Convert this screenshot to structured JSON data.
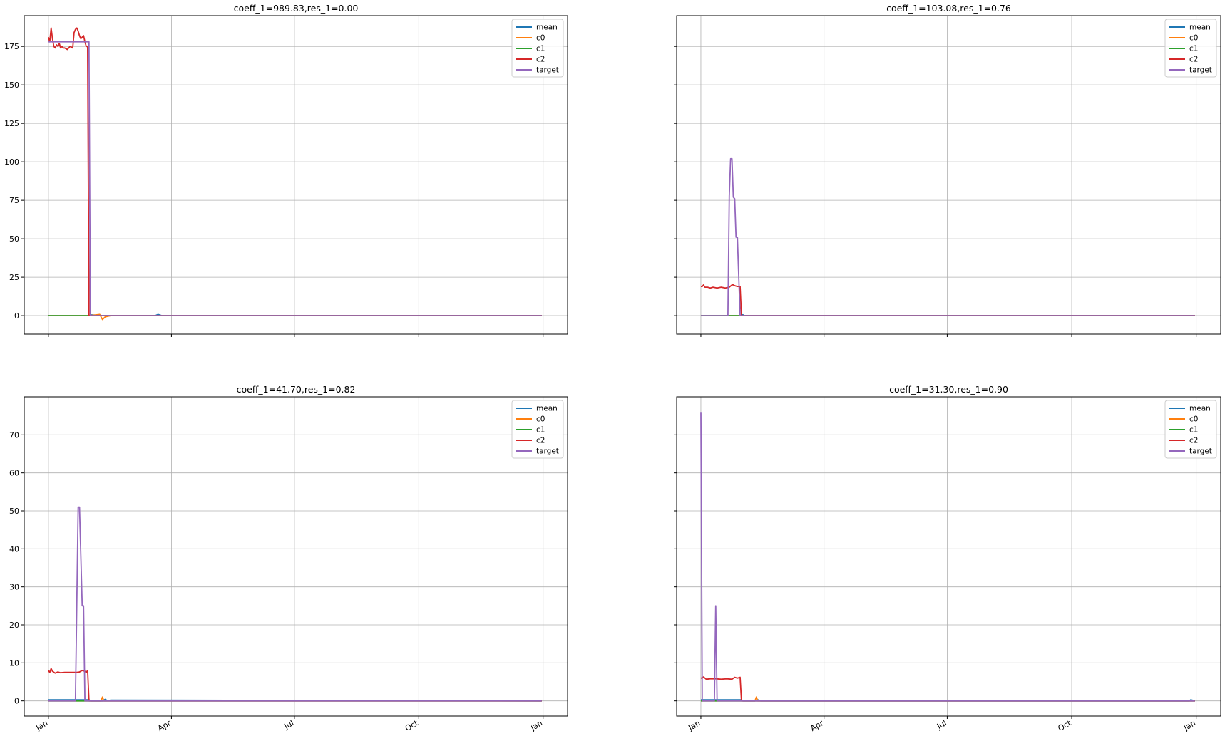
{
  "chart_data": [
    {
      "type": "line",
      "title": "coeff_1=989.83,res_1=0.00",
      "xlabel": "",
      "ylabel": "",
      "xlim": [
        "2020-01-01",
        "2021-01-01"
      ],
      "ylim": [
        -12,
        195
      ],
      "yticks": [
        0,
        25,
        50,
        75,
        100,
        125,
        150,
        175
      ],
      "xticks": [
        {
          "date": "2020-01-01",
          "label": "Jan"
        },
        {
          "date": "2020-04-01",
          "label": "Apr"
        },
        {
          "date": "2020-07-01",
          "label": "Jul"
        },
        {
          "date": "2020-10-01",
          "label": "Oct"
        },
        {
          "date": "2021-01-01",
          "label": "Jan"
        }
      ],
      "show_xticklabels": false,
      "grid": true,
      "legend": "top-right",
      "series": [
        {
          "name": "mean",
          "color": "#1f77b4",
          "x": [
            "2020-01-01",
            "2020-01-31",
            "2020-02-02",
            "2020-02-10",
            "2020-03-20",
            "2020-03-22",
            "2020-03-25",
            "2020-12-31"
          ],
          "y": [
            0,
            0,
            0.5,
            0,
            0,
            0.8,
            0,
            0
          ]
        },
        {
          "name": "c0",
          "color": "#ff7f0e",
          "x": [
            "2020-01-01",
            "2020-01-31",
            "2020-02-08",
            "2020-02-10",
            "2020-02-12",
            "2020-02-16",
            "2020-12-31"
          ],
          "y": [
            0,
            0,
            0.8,
            -2.5,
            -0.8,
            0,
            0
          ]
        },
        {
          "name": "c1",
          "color": "#2ca02c",
          "x": [
            "2020-01-01",
            "2020-02-01",
            "2020-12-31"
          ],
          "y": [
            0,
            0,
            0
          ]
        },
        {
          "name": "c2",
          "color": "#d62728",
          "x": [
            "2020-01-01",
            "2020-01-02",
            "2020-01-03",
            "2020-01-04",
            "2020-01-05",
            "2020-01-06",
            "2020-01-07",
            "2020-01-08",
            "2020-01-09",
            "2020-01-10",
            "2020-01-11",
            "2020-01-12",
            "2020-01-13",
            "2020-01-15",
            "2020-01-17",
            "2020-01-19",
            "2020-01-20",
            "2020-01-21",
            "2020-01-22",
            "2020-01-23",
            "2020-01-24",
            "2020-01-25",
            "2020-01-26",
            "2020-01-27",
            "2020-01-28",
            "2020-01-29",
            "2020-01-30",
            "2020-01-31",
            "2020-02-01",
            "2020-12-31"
          ],
          "y": [
            181,
            178,
            187,
            180,
            175,
            174,
            176,
            175,
            177,
            174,
            175,
            174,
            174,
            173,
            175,
            174,
            184,
            186,
            187,
            185,
            182,
            180,
            181,
            182,
            178,
            175,
            175,
            0,
            0,
            0
          ]
        },
        {
          "name": "target",
          "color": "#9467bd",
          "x": [
            "2020-01-01",
            "2020-01-30",
            "2020-01-31",
            "2020-02-01",
            "2020-12-31"
          ],
          "y": [
            178,
            178,
            178,
            0,
            0
          ]
        }
      ]
    },
    {
      "type": "line",
      "title": "coeff_1=103.08,res_1=0.76",
      "xlabel": "",
      "ylabel": "",
      "xlim": [
        "2020-01-01",
        "2021-01-01"
      ],
      "ylim": [
        -12,
        195
      ],
      "yticks": [
        0,
        25,
        50,
        75,
        100,
        125,
        150,
        175
      ],
      "xticks": [
        {
          "date": "2020-01-01",
          "label": "Jan"
        },
        {
          "date": "2020-04-01",
          "label": "Apr"
        },
        {
          "date": "2020-07-01",
          "label": "Jul"
        },
        {
          "date": "2020-10-01",
          "label": "Oct"
        },
        {
          "date": "2021-01-01",
          "label": "Jan"
        }
      ],
      "show_xticklabels": false,
      "show_yticklabels": false,
      "grid": true,
      "legend": "top-right",
      "series": [
        {
          "name": "mean",
          "color": "#1f77b4",
          "x": [
            "2020-01-01",
            "2020-01-31",
            "2020-02-01",
            "2020-02-02",
            "2020-12-31"
          ],
          "y": [
            0,
            0,
            0.6,
            0,
            0
          ]
        },
        {
          "name": "c0",
          "color": "#ff7f0e",
          "x": [
            "2020-01-01",
            "2020-02-01",
            "2020-12-31"
          ],
          "y": [
            0,
            0,
            0
          ]
        },
        {
          "name": "c1",
          "color": "#2ca02c",
          "x": [
            "2020-01-01",
            "2020-02-01",
            "2020-12-31"
          ],
          "y": [
            0,
            0,
            0
          ]
        },
        {
          "name": "c2",
          "color": "#d62728",
          "x": [
            "2020-01-01",
            "2020-01-02",
            "2020-01-03",
            "2020-01-04",
            "2020-01-06",
            "2020-01-08",
            "2020-01-10",
            "2020-01-13",
            "2020-01-16",
            "2020-01-19",
            "2020-01-22",
            "2020-01-24",
            "2020-01-25",
            "2020-01-26",
            "2020-01-28",
            "2020-01-30",
            "2020-01-31",
            "2020-02-01",
            "2020-12-31"
          ],
          "y": [
            19,
            19,
            20,
            18.5,
            18.5,
            18,
            18.5,
            18,
            18.5,
            18,
            18.5,
            20,
            20,
            19.5,
            19,
            19,
            0,
            0,
            0
          ]
        },
        {
          "name": "target",
          "color": "#9467bd",
          "x": [
            "2020-01-01",
            "2020-01-21",
            "2020-01-22",
            "2020-01-23",
            "2020-01-24",
            "2020-01-25",
            "2020-01-26",
            "2020-01-27",
            "2020-01-28",
            "2020-01-29",
            "2020-01-30",
            "2020-02-01",
            "2020-12-31"
          ],
          "y": [
            0,
            0,
            78,
            102,
            102,
            77,
            76,
            51,
            51,
            25,
            0,
            0,
            0
          ]
        }
      ]
    },
    {
      "type": "line",
      "title": "coeff_1=41.70,res_1=0.82",
      "xlabel": "",
      "ylabel": "",
      "xlim": [
        "2020-01-01",
        "2021-01-01"
      ],
      "ylim": [
        -4,
        80
      ],
      "yticks": [
        0,
        10,
        20,
        30,
        40,
        50,
        60,
        70
      ],
      "xticks": [
        {
          "date": "2020-01-01",
          "label": "Jan"
        },
        {
          "date": "2020-04-01",
          "label": "Apr"
        },
        {
          "date": "2020-07-01",
          "label": "Jul"
        },
        {
          "date": "2020-10-01",
          "label": "Oct"
        },
        {
          "date": "2021-01-01",
          "label": "Jan"
        }
      ],
      "show_xticklabels": true,
      "grid": true,
      "legend": "top-right",
      "series": [
        {
          "name": "mean",
          "color": "#1f77b4",
          "x": [
            "2020-01-01",
            "2020-01-31",
            "2020-02-01",
            "2020-02-10",
            "2020-02-12",
            "2020-02-14",
            "2020-02-16",
            "2020-12-31"
          ],
          "y": [
            0.3,
            0.3,
            0,
            0,
            0.4,
            0,
            0.2,
            0
          ]
        },
        {
          "name": "c0",
          "color": "#ff7f0e",
          "x": [
            "2020-01-01",
            "2020-02-01",
            "2020-02-09",
            "2020-02-10",
            "2020-02-11",
            "2020-12-31"
          ],
          "y": [
            0,
            0,
            0,
            1,
            0,
            0
          ]
        },
        {
          "name": "c1",
          "color": "#2ca02c",
          "x": [
            "2020-01-01",
            "2020-02-01",
            "2020-12-31"
          ],
          "y": [
            0,
            0,
            0
          ]
        },
        {
          "name": "c2",
          "color": "#d62728",
          "x": [
            "2020-01-01",
            "2020-01-02",
            "2020-01-03",
            "2020-01-04",
            "2020-01-06",
            "2020-01-08",
            "2020-01-10",
            "2020-01-13",
            "2020-01-16",
            "2020-01-19",
            "2020-01-22",
            "2020-01-24",
            "2020-01-26",
            "2020-01-28",
            "2020-01-29",
            "2020-01-30",
            "2020-01-31",
            "2020-02-01",
            "2020-12-31"
          ],
          "y": [
            8,
            7.5,
            8.5,
            7.8,
            7.3,
            7.6,
            7.4,
            7.5,
            7.5,
            7.5,
            7.5,
            7.6,
            8,
            7.8,
            7.5,
            8,
            0,
            0,
            0
          ]
        },
        {
          "name": "target",
          "color": "#9467bd",
          "x": [
            "2020-01-01",
            "2020-01-21",
            "2020-01-23",
            "2020-01-24",
            "2020-01-26",
            "2020-01-27",
            "2020-01-28",
            "2020-02-01",
            "2020-12-31"
          ],
          "y": [
            0,
            0,
            51,
            51,
            25,
            25,
            0,
            0,
            0
          ]
        }
      ]
    },
    {
      "type": "line",
      "title": "coeff_1=31.30,res_1=0.90",
      "xlabel": "",
      "ylabel": "",
      "xlim": [
        "2020-01-01",
        "2021-01-01"
      ],
      "ylim": [
        -4,
        80
      ],
      "yticks": [
        0,
        10,
        20,
        30,
        40,
        50,
        60,
        70
      ],
      "xticks": [
        {
          "date": "2020-01-01",
          "label": "Jan"
        },
        {
          "date": "2020-04-01",
          "label": "Apr"
        },
        {
          "date": "2020-07-01",
          "label": "Jul"
        },
        {
          "date": "2020-10-01",
          "label": "Oct"
        },
        {
          "date": "2021-01-01",
          "label": "Jan"
        }
      ],
      "show_xticklabels": true,
      "show_yticklabels": false,
      "grid": true,
      "legend": "top-right",
      "series": [
        {
          "name": "mean",
          "color": "#1f77b4",
          "x": [
            "2020-01-01",
            "2020-01-31",
            "2020-02-01",
            "2020-02-10",
            "2020-02-12",
            "2020-02-14",
            "2020-12-27",
            "2020-12-28",
            "2020-12-31"
          ],
          "y": [
            0.3,
            0.3,
            0,
            0,
            0.3,
            0,
            0,
            0.3,
            0
          ]
        },
        {
          "name": "c0",
          "color": "#ff7f0e",
          "x": [
            "2020-01-01",
            "2020-02-01",
            "2020-02-10",
            "2020-02-11",
            "2020-02-12",
            "2020-12-31"
          ],
          "y": [
            0,
            0,
            0,
            1,
            0,
            0
          ]
        },
        {
          "name": "c1",
          "color": "#2ca02c",
          "x": [
            "2020-01-01",
            "2020-02-01",
            "2020-12-31"
          ],
          "y": [
            0,
            0,
            0
          ]
        },
        {
          "name": "c2",
          "color": "#d62728",
          "x": [
            "2020-01-01",
            "2020-01-02",
            "2020-01-03",
            "2020-01-05",
            "2020-01-08",
            "2020-01-12",
            "2020-01-16",
            "2020-01-20",
            "2020-01-24",
            "2020-01-26",
            "2020-01-28",
            "2020-01-30",
            "2020-01-31",
            "2020-02-01",
            "2020-12-31"
          ],
          "y": [
            6,
            6,
            6.3,
            5.7,
            5.8,
            5.8,
            5.7,
            5.8,
            5.7,
            6.2,
            6,
            6.2,
            0,
            0,
            0
          ]
        },
        {
          "name": "target",
          "color": "#9467bd",
          "x": [
            "2020-01-01",
            "2020-01-02",
            "2020-01-03",
            "2020-01-11",
            "2020-01-12",
            "2020-01-13",
            "2020-12-31"
          ],
          "y": [
            76,
            0,
            0,
            0,
            25,
            0,
            0
          ]
        }
      ]
    }
  ]
}
